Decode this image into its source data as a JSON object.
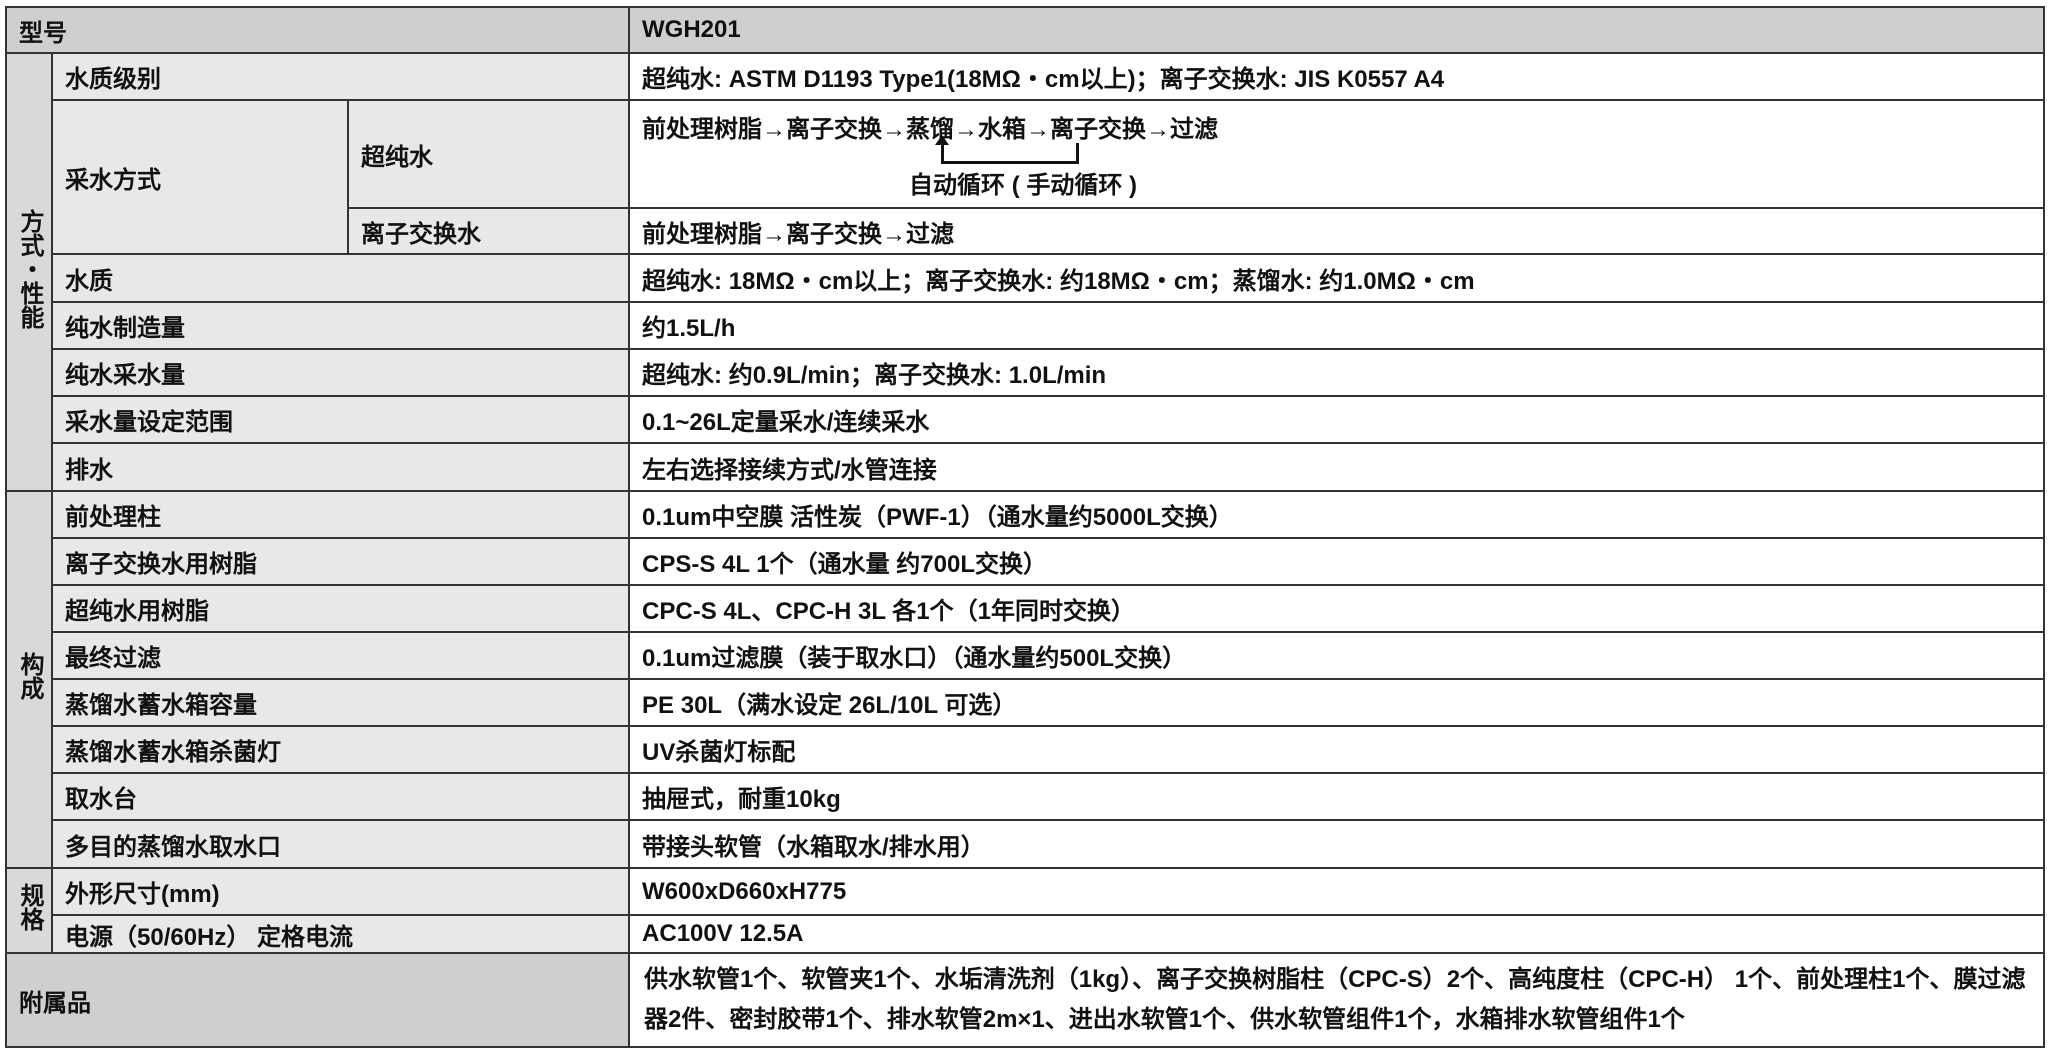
{
  "header": {
    "label": "型号",
    "value": "WGH201"
  },
  "groups": {
    "performance": "方式・性能",
    "composition": "构成",
    "spec": "规格"
  },
  "performance": {
    "grade": {
      "label": "水质级别",
      "value": "超纯水: ASTM D1193 Type1(18MΩ・cm以上)；离子交换水: JIS K0557 A4"
    },
    "method": {
      "label": "采水方式",
      "ultrapure": {
        "label": "超纯水",
        "value": "前处理树脂→离子交换→蒸馏→水箱→离子交换→过滤",
        "loop": "自动循环 ( 手动循环 )"
      },
      "ion": {
        "label": "离子交换水",
        "value": "前处理树脂→离子交换→过滤"
      }
    },
    "quality": {
      "label": "水质",
      "value": "超纯水: 18MΩ・cm以上；离子交换水: 约18MΩ・cm；蒸馏水: 约1.0MΩ・cm"
    },
    "production": {
      "label": "纯水制造量",
      "value": "约1.5L/h"
    },
    "flow": {
      "label": "纯水采水量",
      "value": "超纯水: 约0.9L/min；离子交换水: 1.0L/min"
    },
    "range": {
      "label": "采水量设定范围",
      "value": "0.1~26L定量采水/连续采水"
    },
    "drain": {
      "label": "排水",
      "value": "左右选择接续方式/水管连接"
    }
  },
  "composition": [
    {
      "label": "前处理柱",
      "value": "0.1um中空膜 活性炭（PWF-1）（通水量约5000L交换）"
    },
    {
      "label": "离子交换水用树脂",
      "value": "CPS-S 4L  1个（通水量 约700L交换）"
    },
    {
      "label": "超纯水用树脂",
      "value": "CPC-S 4L、CPC-H 3L 各1个（1年同时交换）"
    },
    {
      "label": "最终过滤",
      "value": "0.1um过滤膜（装于取水口）（通水量约500L交换）"
    },
    {
      "label": "蒸馏水蓄水箱容量",
      "value": "PE 30L（满水设定 26L/10L 可选）"
    },
    {
      "label": "蒸馏水蓄水箱杀菌灯",
      "value": "UV杀菌灯标配"
    },
    {
      "label": "取水台",
      "value": "抽屉式，耐重10kg"
    },
    {
      "label": "多目的蒸馏水取水口",
      "value": "带接头软管（水箱取水/排水用）"
    }
  ],
  "spec": [
    {
      "label": "外形尺寸(mm)",
      "value": "W600xD660xH775"
    },
    {
      "label": "电源（50/60Hz） 定格电流",
      "value": "AC100V 12.5A"
    }
  ],
  "accessories": {
    "label": "附属品",
    "value": "供水软管1个、软管夹1个、水垢清洗剂（1kg）、离子交换树脂柱（CPC-S）2个、高纯度柱（CPC-H） 1个、前处理柱1个、膜过滤器2件、密封胶带1个、排水软管2m×1、进出水软管1个、供水软管组件1个，水箱排水软管组件1个"
  }
}
